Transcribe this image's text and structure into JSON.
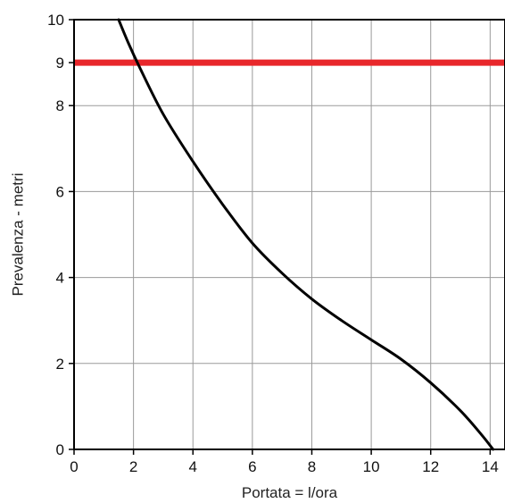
{
  "chart_data": {
    "type": "line",
    "title": "",
    "xlabel": "Portata = l/ora",
    "ylabel": "Prevalenza - metri",
    "xlim": [
      0,
      14.5
    ],
    "ylim": [
      0,
      10
    ],
    "x_ticks": [
      0,
      2,
      4,
      6,
      8,
      10,
      12,
      14
    ],
    "y_ticks": [
      0,
      2,
      4,
      6,
      8,
      9,
      10
    ],
    "grid": true,
    "legend": "none",
    "series": [
      {
        "color": "#000000",
        "points": [
          [
            1.5,
            10
          ],
          [
            1.8,
            9.5
          ],
          [
            2.2,
            8.9
          ],
          [
            3.0,
            7.8
          ],
          [
            4.0,
            6.7
          ],
          [
            5.0,
            5.7
          ],
          [
            6.0,
            4.8
          ],
          [
            7.0,
            4.1
          ],
          [
            8.0,
            3.5
          ],
          [
            9.0,
            3.0
          ],
          [
            10.0,
            2.55
          ],
          [
            11.0,
            2.1
          ],
          [
            12.0,
            1.55
          ],
          [
            13.0,
            0.9
          ],
          [
            13.7,
            0.35
          ],
          [
            14.1,
            0.0
          ]
        ]
      }
    ],
    "reference_lines": [
      {
        "orientation": "horizontal",
        "y": 9,
        "color": "#e8272b"
      }
    ]
  }
}
